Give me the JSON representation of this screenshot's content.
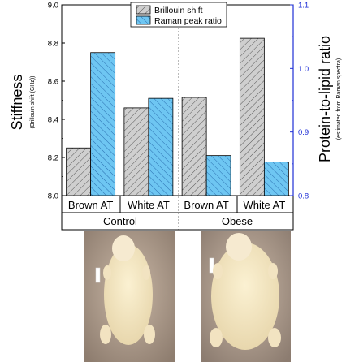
{
  "chart_data": {
    "type": "bar",
    "categories": [
      "Brown AT",
      "White AT",
      "Brown AT",
      "White AT"
    ],
    "groups": [
      {
        "label": "Control",
        "categories": [
          "Brown AT",
          "White AT"
        ]
      },
      {
        "label": "Obese",
        "categories": [
          "Brown AT",
          "White AT"
        ]
      }
    ],
    "series": [
      {
        "name": "Brillouin shift",
        "axis": "left",
        "values": [
          8.25,
          8.46,
          8.515,
          8.825
        ]
      },
      {
        "name": "Raman peak ratio",
        "axis": "right",
        "values": [
          1.025,
          0.953,
          0.863,
          0.853
        ]
      }
    ],
    "left_axis": {
      "title": "Stiffness",
      "subtitle": "(Brillouin shift (GHz))",
      "ylim": [
        8.0,
        9.0
      ],
      "ticks": [
        "8.0",
        "8.2",
        "8.4",
        "8.6",
        "8.8",
        "9.0"
      ]
    },
    "right_axis": {
      "title": "Protein-to-lipid ratio",
      "subtitle": "(estimated from Raman spectra)",
      "ylim": [
        0.8,
        1.1
      ],
      "ticks": [
        "0.8",
        "0.9",
        "1.0",
        "1.1"
      ],
      "color": "#1f2fd6"
    },
    "legend_placement": "top-center",
    "grid": false,
    "colors": {
      "brillouin": "#c8c8c8",
      "raman": "#6ec6f2",
      "right_axis": "#1f2fd6"
    }
  },
  "photos": [
    {
      "label": "control-rat-photo"
    },
    {
      "label": "obese-rat-photo"
    }
  ]
}
